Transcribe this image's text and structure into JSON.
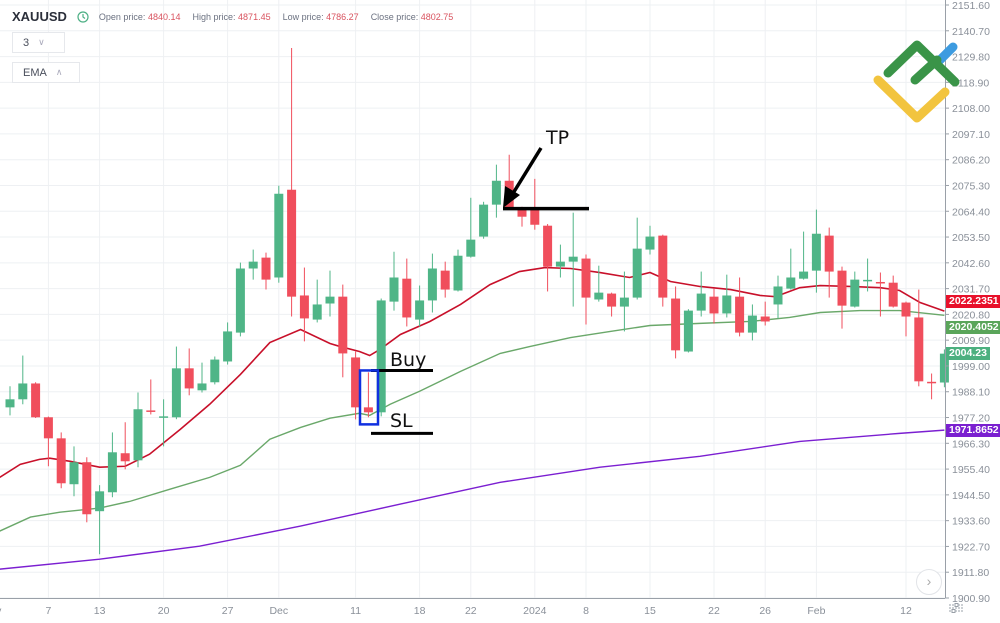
{
  "header": {
    "symbol": "XAUUSD",
    "clock_icon": "clock-icon",
    "open_label": "Open price:",
    "open_value": "4840.14",
    "high_label": "High price:",
    "high_value": "4871.45",
    "low_label": "Low price:",
    "low_value": "4786.27",
    "close_label": "Close price:",
    "close_value": "4802.75"
  },
  "controls": {
    "interval_value": "3",
    "indicator_label": "EMA"
  },
  "annotations": {
    "tp": "TP",
    "buy": "Buy",
    "sl": "SL",
    "tp_price": 2065.5,
    "buy_price": 1997.1,
    "sl_price": 1970.5
  },
  "price_labels": {
    "ema_red": "2022.2351",
    "ema_green": "2020.4052",
    "last_price": "2004.23",
    "ema_purple": "1971.8652"
  },
  "colors": {
    "up": "#4fb587",
    "down": "#f04e5c",
    "ema_red": "#c8102a",
    "ema_green": "#6aa86a",
    "ema_purple": "#7b1fd1",
    "grid": "#eef0f3",
    "annotation": "#000000",
    "box": "#1030e0",
    "label_red": "#e8102a",
    "label_green": "#5aa55a",
    "label_last": "#4cb07f",
    "label_purple": "#7a1fd0"
  },
  "chart_data": {
    "type": "candlestick",
    "ylim": [
      1900.9,
      2151.6
    ],
    "y_ticks": [
      "2151.60",
      "2140.70",
      "2129.80",
      "2118.90",
      "2108.00",
      "2097.10",
      "2086.20",
      "2075.30",
      "2064.40",
      "2053.50",
      "2042.60",
      "2031.70",
      "2020.80",
      "2009.90",
      "1999.00",
      "1988.10",
      "1977.20",
      "1966.30",
      "1955.40",
      "1944.50",
      "1933.60",
      "1922.70",
      "1911.80",
      "1900.90"
    ],
    "x_ticks": [
      {
        "bar": -1.4,
        "label": "Nov"
      },
      {
        "bar": 3,
        "label": "7"
      },
      {
        "bar": 7,
        "label": "13"
      },
      {
        "bar": 12,
        "label": "20"
      },
      {
        "bar": 17,
        "label": "27"
      },
      {
        "bar": 21,
        "label": "Dec"
      },
      {
        "bar": 27,
        "label": "11"
      },
      {
        "bar": 32,
        "label": "18"
      },
      {
        "bar": 36,
        "label": "22"
      },
      {
        "bar": 41,
        "label": "2024"
      },
      {
        "bar": 45,
        "label": "8"
      },
      {
        "bar": 50,
        "label": "15"
      },
      {
        "bar": 55,
        "label": "22"
      },
      {
        "bar": 59,
        "label": "26"
      },
      {
        "bar": 63,
        "label": "Feb"
      },
      {
        "bar": 70,
        "label": "12"
      }
    ],
    "candles": [
      [
        1981.5,
        1984.9,
        1990.4,
        1978.1
      ],
      [
        1984.9,
        1991.6,
        2003.4,
        1982.8
      ],
      [
        1991.6,
        1977.3,
        1992.1,
        1977.0
      ],
      [
        1977.3,
        1968.4,
        1977.6,
        1956.6
      ],
      [
        1968.4,
        1949.4,
        1970.9,
        1947.3
      ],
      [
        1949.0,
        1958.3,
        1965.0,
        1943.9
      ],
      [
        1958.3,
        1936.3,
        1960.4,
        1932.9
      ],
      [
        1937.6,
        1946.0,
        1948.6,
        1919.4
      ],
      [
        1945.6,
        1962.5,
        1970.9,
        1943.5
      ],
      [
        1962.1,
        1958.7,
        1975.2,
        1955.3
      ],
      [
        1959.1,
        1980.7,
        1987.8,
        1956.2
      ],
      [
        1980.2,
        1979.8,
        1993.3,
        1978.5
      ],
      [
        1977.3,
        1977.7,
        1984.9,
        1965.0
      ],
      [
        1977.3,
        1998.0,
        2007.2,
        1976.5
      ],
      [
        1998.0,
        1989.5,
        2006.4,
        1986.6
      ],
      [
        1988.7,
        1991.6,
        2000.4,
        1987.8
      ],
      [
        1992.1,
        2001.7,
        2003.0,
        1991.2
      ],
      [
        2000.9,
        2013.6,
        2017.4,
        1999.6
      ],
      [
        2013.1,
        2040.2,
        2042.7,
        2011.5
      ],
      [
        2040.2,
        2043.1,
        2048.2,
        2035.5
      ],
      [
        2044.8,
        2035.5,
        2046.9,
        2031.3
      ],
      [
        2036.4,
        2071.8,
        2075.2,
        2034.2
      ],
      [
        2073.5,
        2028.3,
        2133.4,
        2019.9
      ],
      [
        2028.8,
        2019.1,
        2040.6,
        2009.4
      ],
      [
        2018.6,
        2025.0,
        2035.5,
        2017.4
      ],
      [
        2025.4,
        2028.3,
        2039.3,
        2019.9
      ],
      [
        2028.3,
        2004.3,
        2033.4,
        1994.2
      ],
      [
        2002.6,
        1981.5,
        2005.1,
        1976.4
      ],
      [
        1981.5,
        1979.4,
        1996.3,
        1977.3
      ],
      [
        1979.4,
        2026.7,
        2027.5,
        1977.7
      ],
      [
        2026.2,
        2036.4,
        2047.3,
        2022.4
      ],
      [
        2035.9,
        2019.5,
        2044.4,
        2015.7
      ],
      [
        2018.6,
        2026.7,
        2033.0,
        2015.7
      ],
      [
        2026.7,
        2040.2,
        2046.5,
        2021.6
      ],
      [
        2039.3,
        2031.3,
        2043.1,
        2027.9
      ],
      [
        2030.9,
        2045.6,
        2048.2,
        2030.5
      ],
      [
        2045.2,
        2052.4,
        2070.1,
        2044.8
      ],
      [
        2053.7,
        2067.2,
        2068.4,
        2052.8
      ],
      [
        2067.2,
        2077.3,
        2084.1,
        2061.7
      ],
      [
        2077.3,
        2065.9,
        2088.3,
        2065.0
      ],
      [
        2065.9,
        2062.1,
        2066.3,
        2057.9
      ],
      [
        2065.1,
        2058.7,
        2078.1,
        2056.6
      ],
      [
        2058.3,
        2041.0,
        2059.0,
        2030.5
      ],
      [
        2041.0,
        2043.1,
        2050.3,
        2036.4
      ],
      [
        2043.1,
        2045.2,
        2063.8,
        2024.1
      ],
      [
        2044.4,
        2027.9,
        2046.1,
        2016.5
      ],
      [
        2027.1,
        2030.0,
        2041.4,
        2026.2
      ],
      [
        2029.6,
        2024.1,
        2030.0,
        2019.9
      ],
      [
        2024.1,
        2027.9,
        2038.9,
        2013.6
      ],
      [
        2027.9,
        2048.6,
        2061.7,
        2027.1
      ],
      [
        2048.2,
        2053.7,
        2058.3,
        2046.1
      ],
      [
        2054.1,
        2027.9,
        2054.5,
        2024.1
      ],
      [
        2027.5,
        2005.6,
        2032.6,
        2002.2
      ],
      [
        2005.1,
        2022.4,
        2023.0,
        2004.7
      ],
      [
        2022.4,
        2029.6,
        2038.9,
        2019.9
      ],
      [
        2028.3,
        2021.2,
        2031.7,
        2016.9
      ],
      [
        2021.2,
        2028.8,
        2037.6,
        2019.5
      ],
      [
        2028.3,
        2013.1,
        2036.4,
        2011.5
      ],
      [
        2013.1,
        2020.3,
        2025.0,
        2009.8
      ],
      [
        2019.9,
        2017.8,
        2026.2,
        2016.1
      ],
      [
        2025.0,
        2032.6,
        2037.2,
        2019.1
      ],
      [
        2031.7,
        2036.4,
        2048.6,
        2031.3
      ],
      [
        2035.9,
        2038.9,
        2055.8,
        2035.5
      ],
      [
        2039.3,
        2054.9,
        2065.1,
        2030.0
      ],
      [
        2054.1,
        2038.9,
        2057.5,
        2027.9
      ],
      [
        2039.3,
        2024.5,
        2041.0,
        2014.8
      ],
      [
        2024.1,
        2035.5,
        2038.9,
        2023.7
      ],
      [
        2035.1,
        2035.4,
        2044.4,
        2030.5
      ],
      [
        2034.5,
        2034.2,
        2038.5,
        2019.9
      ],
      [
        2034.2,
        2024.1,
        2037.2,
        2023.7
      ],
      [
        2025.8,
        2019.9,
        2026.2,
        2011.5
      ],
      [
        2019.5,
        1992.5,
        2031.3,
        1990.4
      ],
      [
        1992.3,
        1992.0,
        1995.8,
        1984.9
      ],
      [
        1992.0,
        2004.2,
        2006.0,
        1990.0
      ]
    ],
    "series": [
      {
        "name": "EMA",
        "color": "#c8102a",
        "points": [
          [
            -0.8,
            1951.9
          ],
          [
            0.8,
            1957.4
          ],
          [
            2.3,
            1959.5
          ],
          [
            3.1,
            1960.0
          ],
          [
            4.7,
            1958.7
          ],
          [
            7,
            1956.2
          ],
          [
            9,
            1956.6
          ],
          [
            10.9,
            1961.7
          ],
          [
            13.3,
            1972.2
          ],
          [
            15.6,
            1982.8
          ],
          [
            18,
            1995.4
          ],
          [
            20.3,
            2008.9
          ],
          [
            22.7,
            2014.4
          ],
          [
            25,
            2008.5
          ],
          [
            25.8,
            2007.2
          ],
          [
            27.3,
            2005.1
          ],
          [
            28.1,
            2003.4
          ],
          [
            28.9,
            2006.0
          ],
          [
            30.5,
            2012.3
          ],
          [
            32.8,
            2017.8
          ],
          [
            35.2,
            2025.0
          ],
          [
            37.5,
            2033.4
          ],
          [
            39.8,
            2038.9
          ],
          [
            41.8,
            2040.6
          ],
          [
            43.8,
            2040.2
          ],
          [
            46.1,
            2038.5
          ],
          [
            48.4,
            2036.4
          ],
          [
            50,
            2038.5
          ],
          [
            51.6,
            2034.7
          ],
          [
            53.9,
            2032.6
          ],
          [
            56.3,
            2031.3
          ],
          [
            58.6,
            2028.8
          ],
          [
            59.8,
            2028.3
          ],
          [
            61.7,
            2032.1
          ],
          [
            63.3,
            2033.0
          ],
          [
            65.6,
            2032.6
          ],
          [
            68,
            2032.1
          ],
          [
            69.5,
            2030.9
          ],
          [
            71.1,
            2025.8
          ],
          [
            73,
            2022.2
          ]
        ]
      },
      {
        "name": "EMA",
        "color": "#6aa86a",
        "points": [
          [
            -0.8,
            1929.2
          ],
          [
            1.6,
            1935.1
          ],
          [
            3.9,
            1937.2
          ],
          [
            7,
            1938.9
          ],
          [
            9.4,
            1941.8
          ],
          [
            12.5,
            1946.9
          ],
          [
            15.6,
            1951.9
          ],
          [
            18,
            1957.0
          ],
          [
            20.3,
            1968.0
          ],
          [
            22.7,
            1973.0
          ],
          [
            25,
            1976.9
          ],
          [
            27.3,
            1979.0
          ],
          [
            28.1,
            1978.1
          ],
          [
            29.7,
            1982.8
          ],
          [
            32,
            1988.3
          ],
          [
            35.2,
            1996.7
          ],
          [
            38.3,
            2004.3
          ],
          [
            40.6,
            2007.2
          ],
          [
            43.8,
            2011.0
          ],
          [
            46.9,
            2013.6
          ],
          [
            50,
            2016.1
          ],
          [
            53.9,
            2017.0
          ],
          [
            57.8,
            2017.8
          ],
          [
            60.9,
            2019.5
          ],
          [
            63.3,
            2021.6
          ],
          [
            66.4,
            2022.4
          ],
          [
            69.5,
            2022.4
          ],
          [
            73,
            2020.4
          ]
        ]
      },
      {
        "name": "EMA",
        "color": "#7b1fd1",
        "points": [
          [
            -0.8,
            1913.1
          ],
          [
            7,
            1917.3
          ],
          [
            14.8,
            1922.8
          ],
          [
            22.7,
            1931.3
          ],
          [
            30.5,
            1940.6
          ],
          [
            38.3,
            1949.8
          ],
          [
            46.1,
            1956.2
          ],
          [
            53.9,
            1960.8
          ],
          [
            61.7,
            1967.1
          ],
          [
            69.5,
            1970.5
          ],
          [
            73,
            1971.87
          ]
        ]
      }
    ]
  }
}
